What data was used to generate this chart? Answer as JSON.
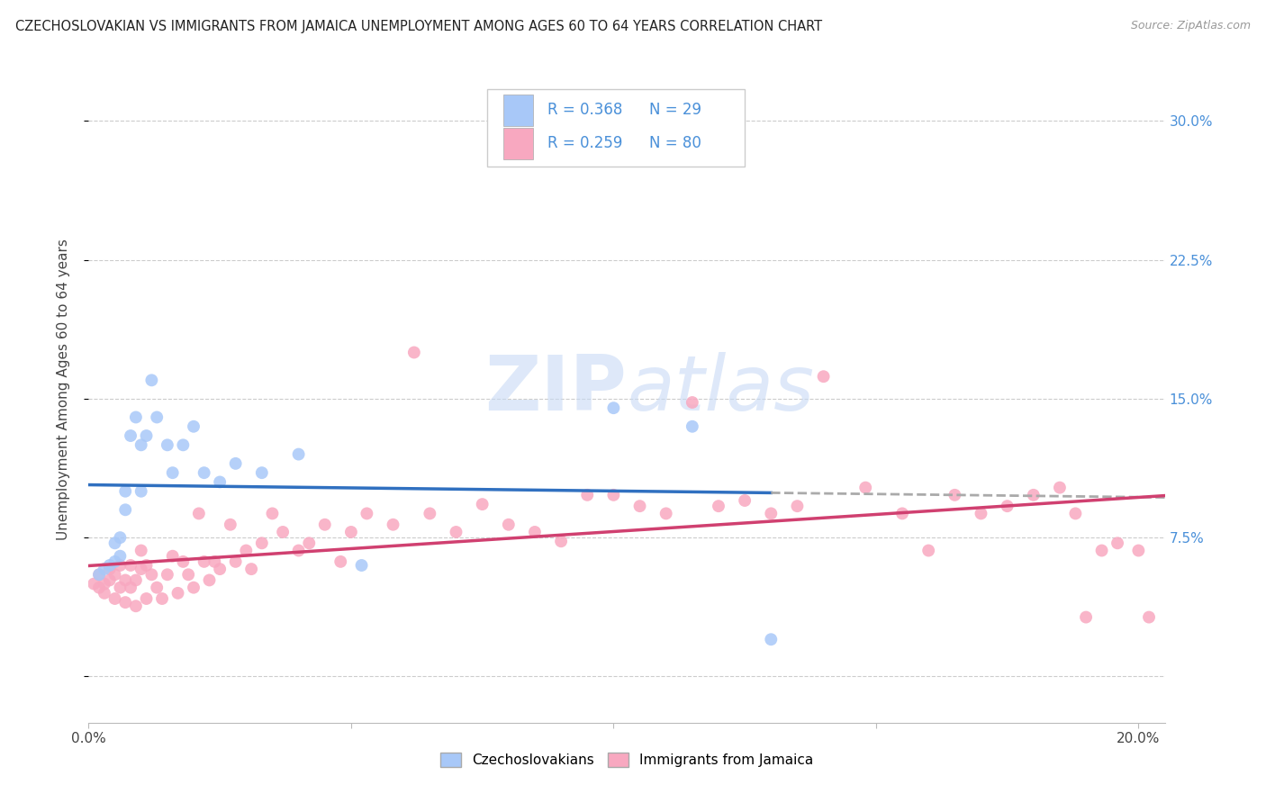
{
  "title": "CZECHOSLOVAKIAN VS IMMIGRANTS FROM JAMAICA UNEMPLOYMENT AMONG AGES 60 TO 64 YEARS CORRELATION CHART",
  "source": "Source: ZipAtlas.com",
  "ylabel": "Unemployment Among Ages 60 to 64 years",
  "xlim": [
    0.0,
    0.205
  ],
  "ylim": [
    -0.025,
    0.335
  ],
  "xticks": [
    0.0,
    0.05,
    0.1,
    0.15,
    0.2
  ],
  "xticklabels": [
    "0.0%",
    "",
    "",
    "",
    "20.0%"
  ],
  "ytick_vals": [
    0.0,
    0.075,
    0.15,
    0.225,
    0.3
  ],
  "yticklabels_right": [
    "",
    "7.5%",
    "15.0%",
    "22.5%",
    "30.0%"
  ],
  "R_czech": 0.368,
  "N_czech": 29,
  "R_jamaica": 0.259,
  "N_jamaica": 80,
  "czech_color": "#a8c8f8",
  "jamaica_color": "#f8a8c0",
  "czech_line_color": "#3070c0",
  "jamaica_line_color": "#d04070",
  "grid_color": "#cccccc",
  "background_color": "#ffffff",
  "czech_x": [
    0.002,
    0.003,
    0.004,
    0.005,
    0.005,
    0.006,
    0.006,
    0.007,
    0.007,
    0.008,
    0.009,
    0.01,
    0.01,
    0.011,
    0.012,
    0.013,
    0.015,
    0.016,
    0.018,
    0.02,
    0.022,
    0.025,
    0.028,
    0.033,
    0.04,
    0.052,
    0.1,
    0.115,
    0.13
  ],
  "czech_y": [
    0.055,
    0.058,
    0.06,
    0.062,
    0.072,
    0.075,
    0.065,
    0.1,
    0.09,
    0.13,
    0.14,
    0.125,
    0.1,
    0.13,
    0.16,
    0.14,
    0.125,
    0.11,
    0.125,
    0.135,
    0.11,
    0.105,
    0.115,
    0.11,
    0.12,
    0.06,
    0.145,
    0.135,
    0.02
  ],
  "jamaica_x": [
    0.001,
    0.002,
    0.002,
    0.003,
    0.003,
    0.004,
    0.004,
    0.005,
    0.005,
    0.006,
    0.006,
    0.007,
    0.007,
    0.008,
    0.008,
    0.009,
    0.009,
    0.01,
    0.01,
    0.011,
    0.011,
    0.012,
    0.013,
    0.014,
    0.015,
    0.016,
    0.017,
    0.018,
    0.019,
    0.02,
    0.021,
    0.022,
    0.023,
    0.024,
    0.025,
    0.027,
    0.028,
    0.03,
    0.031,
    0.033,
    0.035,
    0.037,
    0.04,
    0.042,
    0.045,
    0.048,
    0.05,
    0.053,
    0.058,
    0.062,
    0.065,
    0.07,
    0.075,
    0.08,
    0.085,
    0.09,
    0.095,
    0.1,
    0.105,
    0.11,
    0.115,
    0.12,
    0.125,
    0.13,
    0.135,
    0.14,
    0.148,
    0.155,
    0.16,
    0.165,
    0.17,
    0.175,
    0.18,
    0.185,
    0.188,
    0.19,
    0.193,
    0.196,
    0.2,
    0.202
  ],
  "jamaica_y": [
    0.05,
    0.048,
    0.055,
    0.05,
    0.045,
    0.052,
    0.058,
    0.055,
    0.042,
    0.06,
    0.048,
    0.052,
    0.04,
    0.06,
    0.048,
    0.052,
    0.038,
    0.058,
    0.068,
    0.06,
    0.042,
    0.055,
    0.048,
    0.042,
    0.055,
    0.065,
    0.045,
    0.062,
    0.055,
    0.048,
    0.088,
    0.062,
    0.052,
    0.062,
    0.058,
    0.082,
    0.062,
    0.068,
    0.058,
    0.072,
    0.088,
    0.078,
    0.068,
    0.072,
    0.082,
    0.062,
    0.078,
    0.088,
    0.082,
    0.175,
    0.088,
    0.078,
    0.093,
    0.082,
    0.078,
    0.073,
    0.098,
    0.098,
    0.092,
    0.088,
    0.148,
    0.092,
    0.095,
    0.088,
    0.092,
    0.162,
    0.102,
    0.088,
    0.068,
    0.098,
    0.088,
    0.092,
    0.098,
    0.102,
    0.088,
    0.032,
    0.068,
    0.072,
    0.068,
    0.032
  ]
}
